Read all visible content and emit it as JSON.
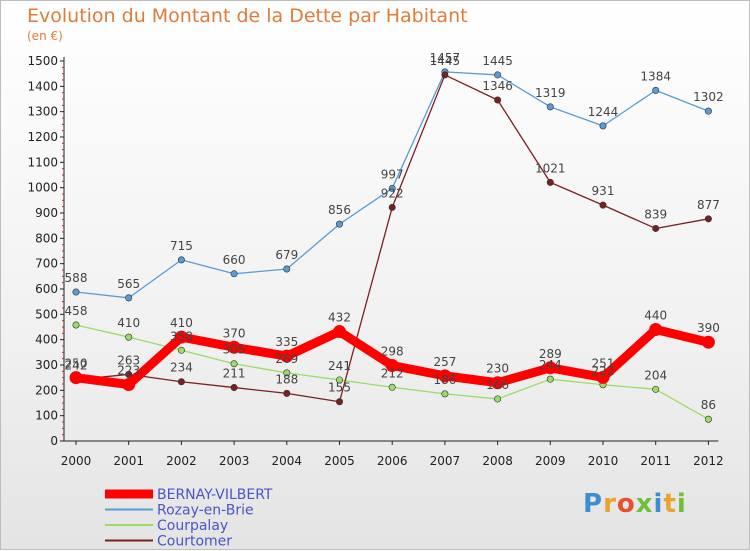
{
  "title": "Evolution du Montant de la Dette par Habitant",
  "subtitle": "(en €)",
  "logo_text": "Proxiti",
  "chart_data": {
    "type": "line",
    "title": "Evolution du Montant de la Dette par Habitant",
    "subtitle": "(en €)",
    "categories": [
      "2000",
      "2001",
      "2002",
      "2003",
      "2004",
      "2005",
      "2006",
      "2007",
      "2008",
      "2009",
      "2010",
      "2011",
      "2012"
    ],
    "ylim": [
      0,
      1500
    ],
    "yticks": [
      0,
      100,
      200,
      300,
      400,
      500,
      600,
      700,
      800,
      900,
      1000,
      1100,
      1200,
      1300,
      1400,
      1500
    ],
    "grid": false,
    "legend_position": "bottom-left",
    "series": [
      {
        "name": "BERNAY-VILBERT",
        "color": "#ff0000",
        "values": [
          250,
          223,
          410,
          370,
          335,
          432,
          298,
          257,
          230,
          289,
          251,
          440,
          390
        ]
      },
      {
        "name": "Rozay-en-Brie",
        "color": "#5b9bd5",
        "values": [
          588,
          565,
          715,
          660,
          679,
          856,
          997,
          1457,
          1445,
          1319,
          1244,
          1384,
          1302
        ]
      },
      {
        "name": "Courpalay",
        "color": "#99dd66",
        "values": [
          458,
          410,
          358,
          305,
          269,
          241,
          212,
          186,
          166,
          244,
          222,
          204,
          86
        ]
      },
      {
        "name": "Courtomer",
        "color": "#7a2020",
        "values": [
          242,
          263,
          234,
          211,
          188,
          155,
          922,
          1445,
          1346,
          1021,
          931,
          839,
          877
        ]
      }
    ]
  }
}
